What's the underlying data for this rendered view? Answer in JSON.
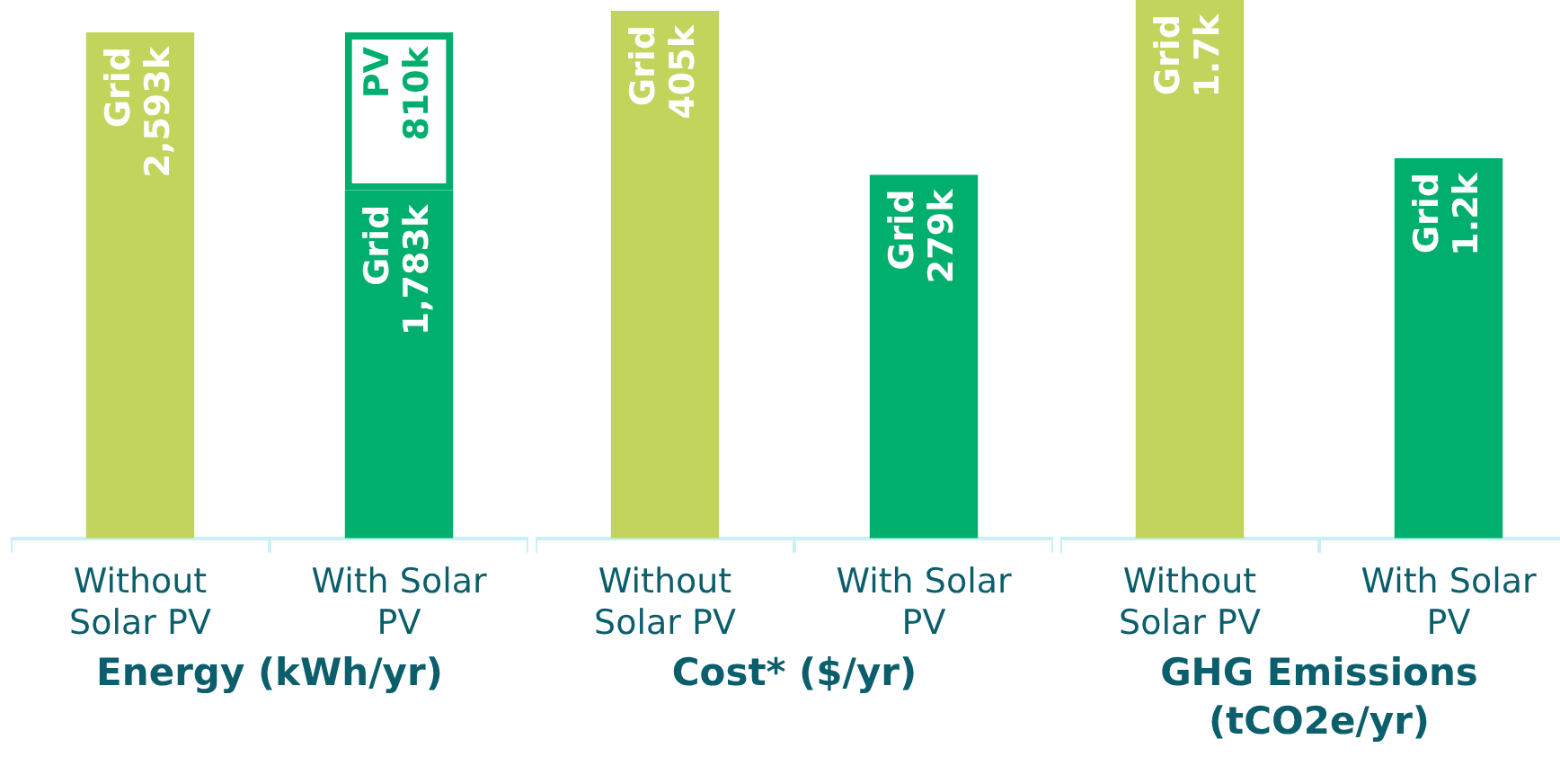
{
  "chart_data": [
    {
      "type": "bar",
      "title": "Energy (kWh/yr)",
      "categories": [
        "Without Solar PV",
        "With Solar PV"
      ],
      "stacked": true,
      "series": [
        {
          "name": "Grid",
          "colors": [
            "#c3d45c",
            "#00ae6e"
          ],
          "values": [
            2593,
            1783
          ],
          "value_labels": [
            "2,593k",
            "1,783k"
          ]
        },
        {
          "name": "PV",
          "color": "#00ae6e",
          "values": [
            null,
            810
          ],
          "value_labels": [
            null,
            "810k"
          ]
        }
      ]
    },
    {
      "type": "bar",
      "title": "Cost* ($/yr)",
      "categories": [
        "Without Solar PV",
        "With Solar PV"
      ],
      "series": [
        {
          "name": "Grid",
          "colors": [
            "#c3d45c",
            "#00ae6e"
          ],
          "values": [
            405,
            279
          ],
          "value_labels": [
            "405k",
            "279k"
          ]
        }
      ]
    },
    {
      "type": "bar",
      "title": "GHG Emissions (tCO2e/yr)",
      "categories": [
        "Without Solar PV",
        "With Solar PV"
      ],
      "series": [
        {
          "name": "Grid",
          "colors": [
            "#c3d45c",
            "#00ae6e"
          ],
          "values": [
            1.7,
            1.2
          ],
          "value_labels": [
            "1.7k",
            "1.2k"
          ]
        }
      ]
    }
  ]
}
